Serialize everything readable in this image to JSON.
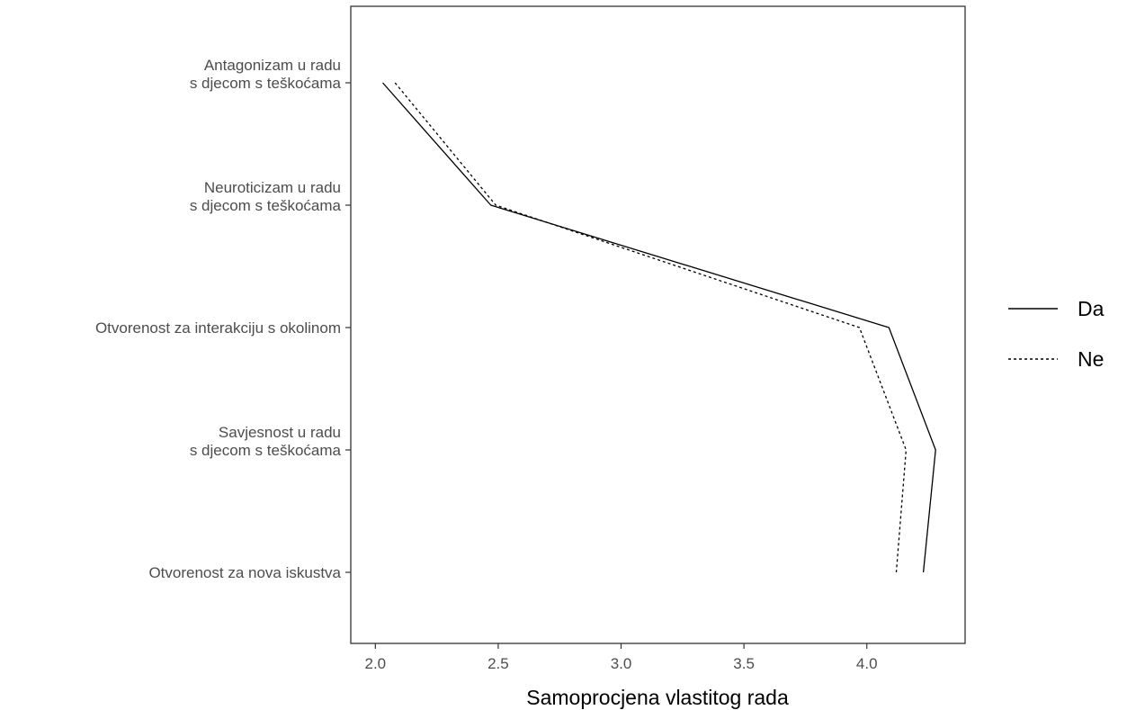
{
  "chart_data": {
    "type": "line",
    "xlabel": "Samoprocjena vlastitog rada",
    "ylabel": "",
    "xlim": [
      1.9,
      4.4
    ],
    "x_ticks": [
      "2.0",
      "2.5",
      "3.0",
      "3.5",
      "4.0"
    ],
    "categories": [
      [
        "Antagonizam u radu",
        "s djecom s teškoćama"
      ],
      [
        "Neuroticizam u radu",
        "s djecom s teškoćama"
      ],
      [
        "Otvorenost za interakciju s okolinom"
      ],
      [
        "Savjesnost u radu",
        "s djecom s teškoćama"
      ],
      [
        "Otvorenost za nova iskustva"
      ]
    ],
    "series": [
      {
        "name": "Da",
        "linestyle": "solid",
        "values": [
          2.03,
          2.47,
          4.09,
          4.28,
          4.23
        ]
      },
      {
        "name": "Ne",
        "linestyle": "dotted",
        "values": [
          2.08,
          2.49,
          3.97,
          4.16,
          4.12
        ]
      }
    ],
    "legend_position": "right",
    "grid": false,
    "colors": {
      "line": "#000000",
      "tick_label": "#4d4d4d",
      "frame": "#333333"
    }
  }
}
